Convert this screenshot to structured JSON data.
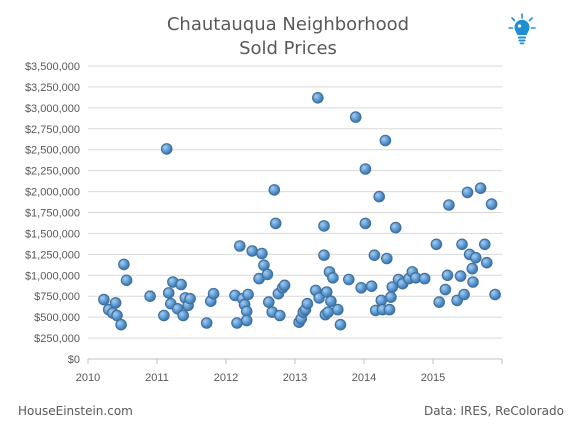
{
  "chart_data": {
    "type": "scatter",
    "title_line1": "Chautauqua Neighborhood",
    "title_line2": "Sold Prices",
    "xlabel": "",
    "ylabel": "",
    "xlim": [
      2010,
      2016
    ],
    "ylim": [
      0,
      3500000
    ],
    "x_ticks": [
      2010,
      2011,
      2012,
      2013,
      2014,
      2015
    ],
    "x_tick_labels": [
      "2010",
      "2011",
      "2012",
      "2013",
      "2014",
      "2015"
    ],
    "y_ticks": [
      0,
      250000,
      500000,
      750000,
      1000000,
      1250000,
      1500000,
      1750000,
      2000000,
      2250000,
      2500000,
      2750000,
      3000000,
      3250000,
      3500000
    ],
    "y_tick_labels": [
      "$0",
      "$250,000",
      "$500,000",
      "$750,000",
      "$1,000,000",
      "$1,250,000",
      "$1,500,000",
      "$1,750,000",
      "$2,000,000",
      "$2,250,000",
      "$2,500,000",
      "$2,750,000",
      "$3,000,000",
      "$3,250,000",
      "$3,500,000"
    ],
    "grid": "horizontal",
    "legend": "none",
    "marker_color": "#5b9bd5",
    "marker_edge_color": "#41719c",
    "points": [
      [
        2010.23,
        710000
      ],
      [
        2010.3,
        590000
      ],
      [
        2010.36,
        550000
      ],
      [
        2010.4,
        670000
      ],
      [
        2010.42,
        520000
      ],
      [
        2010.48,
        410000
      ],
      [
        2010.52,
        1130000
      ],
      [
        2010.56,
        940000
      ],
      [
        2010.9,
        750000
      ],
      [
        2011.1,
        520000
      ],
      [
        2011.14,
        2510000
      ],
      [
        2011.17,
        790000
      ],
      [
        2011.2,
        660000
      ],
      [
        2011.23,
        920000
      ],
      [
        2011.3,
        600000
      ],
      [
        2011.35,
        890000
      ],
      [
        2011.38,
        520000
      ],
      [
        2011.41,
        730000
      ],
      [
        2011.45,
        640000
      ],
      [
        2011.48,
        720000
      ],
      [
        2011.72,
        430000
      ],
      [
        2011.78,
        690000
      ],
      [
        2011.82,
        780000
      ],
      [
        2012.13,
        760000
      ],
      [
        2012.16,
        430000
      ],
      [
        2012.2,
        1350000
      ],
      [
        2012.24,
        720000
      ],
      [
        2012.27,
        650000
      ],
      [
        2012.3,
        570000
      ],
      [
        2012.3,
        460000
      ],
      [
        2012.32,
        770000
      ],
      [
        2012.38,
        1290000
      ],
      [
        2012.48,
        960000
      ],
      [
        2012.52,
        1260000
      ],
      [
        2012.55,
        1120000
      ],
      [
        2012.6,
        1010000
      ],
      [
        2012.62,
        680000
      ],
      [
        2012.67,
        560000
      ],
      [
        2012.7,
        2020000
      ],
      [
        2012.72,
        1620000
      ],
      [
        2012.76,
        780000
      ],
      [
        2012.78,
        520000
      ],
      [
        2012.82,
        850000
      ],
      [
        2012.85,
        880000
      ],
      [
        2013.06,
        440000
      ],
      [
        2013.09,
        480000
      ],
      [
        2013.12,
        560000
      ],
      [
        2013.15,
        590000
      ],
      [
        2013.18,
        660000
      ],
      [
        2013.3,
        820000
      ],
      [
        2013.33,
        3120000
      ],
      [
        2013.35,
        730000
      ],
      [
        2013.42,
        1590000
      ],
      [
        2013.42,
        1240000
      ],
      [
        2013.44,
        530000
      ],
      [
        2013.46,
        800000
      ],
      [
        2013.48,
        560000
      ],
      [
        2013.5,
        1040000
      ],
      [
        2013.52,
        690000
      ],
      [
        2013.55,
        970000
      ],
      [
        2013.62,
        590000
      ],
      [
        2013.66,
        410000
      ],
      [
        2013.78,
        950000
      ],
      [
        2013.88,
        2890000
      ],
      [
        2013.96,
        850000
      ],
      [
        2014.02,
        1620000
      ],
      [
        2014.02,
        2270000
      ],
      [
        2014.11,
        870000
      ],
      [
        2014.15,
        1240000
      ],
      [
        2014.17,
        580000
      ],
      [
        2014.22,
        1940000
      ],
      [
        2014.25,
        700000
      ],
      [
        2014.27,
        590000
      ],
      [
        2014.31,
        2610000
      ],
      [
        2014.33,
        1200000
      ],
      [
        2014.37,
        590000
      ],
      [
        2014.39,
        740000
      ],
      [
        2014.41,
        860000
      ],
      [
        2014.46,
        1570000
      ],
      [
        2014.5,
        950000
      ],
      [
        2014.56,
        900000
      ],
      [
        2014.65,
        960000
      ],
      [
        2014.7,
        1040000
      ],
      [
        2014.75,
        970000
      ],
      [
        2014.88,
        960000
      ],
      [
        2015.05,
        1370000
      ],
      [
        2015.09,
        680000
      ],
      [
        2015.18,
        830000
      ],
      [
        2015.21,
        1000000
      ],
      [
        2015.23,
        1840000
      ],
      [
        2015.35,
        700000
      ],
      [
        2015.4,
        990000
      ],
      [
        2015.42,
        1370000
      ],
      [
        2015.45,
        770000
      ],
      [
        2015.5,
        1990000
      ],
      [
        2015.53,
        1250000
      ],
      [
        2015.57,
        1080000
      ],
      [
        2015.58,
        920000
      ],
      [
        2015.62,
        1210000
      ],
      [
        2015.69,
        2040000
      ],
      [
        2015.75,
        1370000
      ],
      [
        2015.78,
        1150000
      ],
      [
        2015.85,
        1850000
      ],
      [
        2015.9,
        770000
      ]
    ]
  },
  "footer": {
    "left": "HouseEinstein.com",
    "right": "Data: IRES,  ReColorado"
  },
  "logo": {
    "icon": "lightbulb-icon",
    "color": "#1e90d2"
  }
}
